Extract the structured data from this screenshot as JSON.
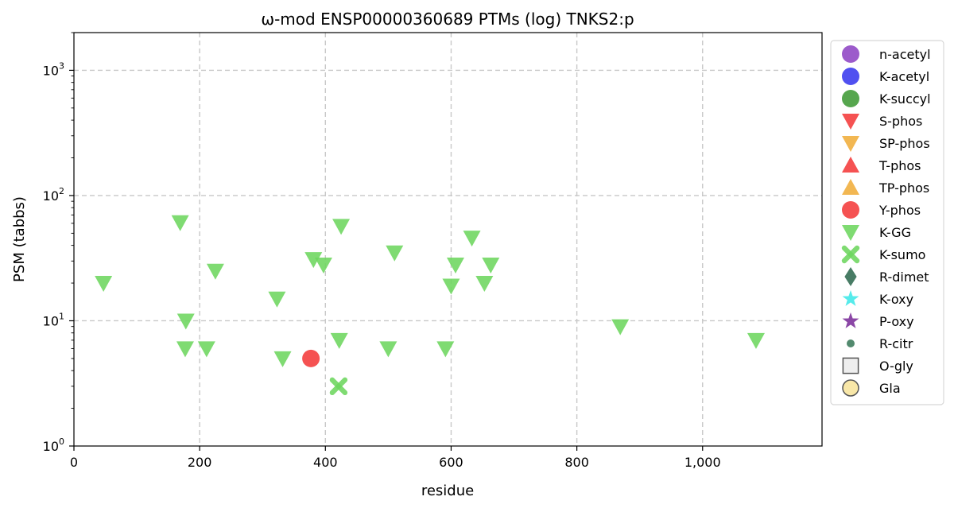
{
  "chart_data": {
    "type": "scatter",
    "title": "ω-mod ENSP00000360689 PTMs (log) TNKS2:p",
    "xlabel": "residue",
    "ylabel": "PSM (tabbs)",
    "xlim": [
      0,
      1190
    ],
    "ylim": [
      1,
      2000
    ],
    "yscale": "log",
    "x_ticks": [
      0,
      200,
      400,
      600,
      800,
      1000
    ],
    "x_tick_labels": [
      "0",
      "200",
      "400",
      "600",
      "800",
      "1,000"
    ],
    "y_ticks": [
      1,
      10,
      100,
      1000
    ],
    "y_tick_labels": [
      {
        "base": "10",
        "exp": "0"
      },
      {
        "base": "10",
        "exp": "1"
      },
      {
        "base": "10",
        "exp": "2"
      },
      {
        "base": "10",
        "exp": "3"
      }
    ],
    "grid": true,
    "legend_position": "outside right",
    "legend": [
      {
        "name": "n-acetyl",
        "marker": "circle",
        "color": "#8e44c4"
      },
      {
        "name": "K-acetyl",
        "marker": "circle",
        "color": "#3838ee"
      },
      {
        "name": "K-succyl",
        "marker": "circle",
        "color": "#3f9a35"
      },
      {
        "name": "S-phos",
        "marker": "triangle-down",
        "color": "#f43a3a"
      },
      {
        "name": "SP-phos",
        "marker": "triangle-down",
        "color": "#f0ad3a"
      },
      {
        "name": "T-phos",
        "marker": "triangle-up",
        "color": "#f43a3a"
      },
      {
        "name": "TP-phos",
        "marker": "triangle-up",
        "color": "#f0ad3a"
      },
      {
        "name": "Y-phos",
        "marker": "circle",
        "color": "#f43a3a"
      },
      {
        "name": "K-GG",
        "marker": "triangle-down",
        "color": "#6dd65e"
      },
      {
        "name": "K-sumo",
        "marker": "x",
        "color": "#6dd65e"
      },
      {
        "name": "R-dimet",
        "marker": "diamond",
        "color": "#2f6a50"
      },
      {
        "name": "K-oxy",
        "marker": "star",
        "color": "#3fe8e8"
      },
      {
        "name": "P-oxy",
        "marker": "star",
        "color": "#7b2e9a"
      },
      {
        "name": "R-citr",
        "marker": "small-circle",
        "color": "#3a7a5a"
      },
      {
        "name": "O-gly",
        "marker": "square",
        "color": "#eeeeee"
      },
      {
        "name": "Gla",
        "marker": "circle-open",
        "color": "#f8e7a8"
      }
    ],
    "series": [
      {
        "name": "K-GG",
        "points": [
          {
            "x": 47,
            "y": 20
          },
          {
            "x": 169,
            "y": 61
          },
          {
            "x": 178,
            "y": 10
          },
          {
            "x": 177,
            "y": 6
          },
          {
            "x": 211,
            "y": 6
          },
          {
            "x": 225,
            "y": 25
          },
          {
            "x": 323,
            "y": 15
          },
          {
            "x": 332,
            "y": 5
          },
          {
            "x": 381,
            "y": 31
          },
          {
            "x": 397,
            "y": 28
          },
          {
            "x": 422,
            "y": 7
          },
          {
            "x": 425,
            "y": 57
          },
          {
            "x": 500,
            "y": 6
          },
          {
            "x": 510,
            "y": 35
          },
          {
            "x": 591,
            "y": 6
          },
          {
            "x": 600,
            "y": 19
          },
          {
            "x": 607,
            "y": 28
          },
          {
            "x": 633,
            "y": 46
          },
          {
            "x": 653,
            "y": 20
          },
          {
            "x": 663,
            "y": 28
          },
          {
            "x": 869,
            "y": 9
          },
          {
            "x": 1085,
            "y": 7
          }
        ]
      },
      {
        "name": "Y-phos",
        "points": [
          {
            "x": 377,
            "y": 5
          }
        ]
      },
      {
        "name": "K-sumo",
        "points": [
          {
            "x": 421,
            "y": 3
          }
        ]
      }
    ]
  }
}
